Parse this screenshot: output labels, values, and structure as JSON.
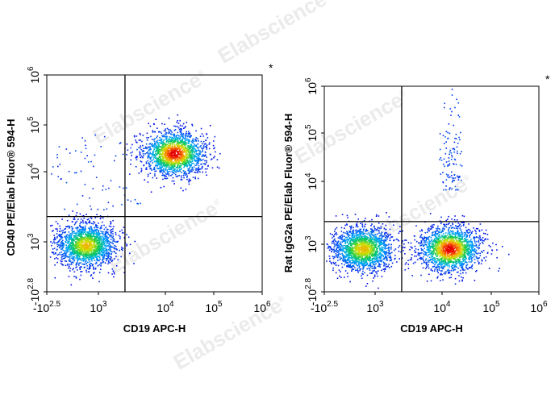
{
  "watermark": {
    "text": "Elabscience",
    "mark": "®"
  },
  "chart_data": [
    {
      "type": "scatter",
      "subtype": "flow-cytometry-density-dot-plot",
      "xlabel": "CD19 APC-H",
      "ylabel": "CD40 PE/Elab Fluor® 594-H",
      "annotation": "*",
      "xscale": "biexponential",
      "yscale": "biexponential",
      "xlim": [
        -316,
        1000000
      ],
      "ylim": [
        -631,
        1000000
      ],
      "x_ticks": [
        {
          "value": -316,
          "base": "-10",
          "exp": "2.5"
        },
        {
          "value": 1000,
          "base": "10",
          "exp": "3"
        },
        {
          "value": 10000,
          "base": "10",
          "exp": "4"
        },
        {
          "value": 100000,
          "base": "10",
          "exp": "5"
        },
        {
          "value": 1000000,
          "base": "10",
          "exp": "6"
        }
      ],
      "y_ticks": [
        {
          "value": -631,
          "base": "-10",
          "exp": "2.8"
        },
        {
          "value": 1000,
          "base": "10",
          "exp": "3"
        },
        {
          "value": 10000,
          "base": "10",
          "exp": "4"
        },
        {
          "value": 100000,
          "base": "10",
          "exp": "5"
        },
        {
          "value": 1000000,
          "base": "10",
          "exp": "6"
        }
      ],
      "quadrant_gate": {
        "x": 2500,
        "y": 2300
      },
      "populations": [
        {
          "name": "CD19- CD40-",
          "center_x": 350,
          "center_y": 750,
          "spread": "dense",
          "intensity": "high"
        },
        {
          "name": "CD19+ CD40+",
          "center_x": 15000,
          "center_y": 25000,
          "spread": "dense",
          "intensity": "peak"
        },
        {
          "name": "CD19- CD40+ scattered",
          "center_x": 300,
          "center_y": 8000,
          "spread": "sparse",
          "intensity": "low"
        }
      ]
    },
    {
      "type": "scatter",
      "subtype": "flow-cytometry-density-dot-plot",
      "xlabel": "CD19 APC-H",
      "ylabel": "Rat IgG2a PE/Elab Fluor® 594-H",
      "annotation": "*",
      "xscale": "biexponential",
      "yscale": "biexponential",
      "xlim": [
        -316,
        1000000
      ],
      "ylim": [
        -631,
        1000000
      ],
      "x_ticks": [
        {
          "value": -316,
          "base": "-10",
          "exp": "2.5"
        },
        {
          "value": 1000,
          "base": "10",
          "exp": "3"
        },
        {
          "value": 10000,
          "base": "10",
          "exp": "4"
        },
        {
          "value": 100000,
          "base": "10",
          "exp": "5"
        },
        {
          "value": 1000000,
          "base": "10",
          "exp": "6"
        }
      ],
      "y_ticks": [
        {
          "value": -631,
          "base": "-10",
          "exp": "2.8"
        },
        {
          "value": 1000,
          "base": "10",
          "exp": "3"
        },
        {
          "value": 10000,
          "base": "10",
          "exp": "4"
        },
        {
          "value": 100000,
          "base": "10",
          "exp": "5"
        },
        {
          "value": 1000000,
          "base": "10",
          "exp": "6"
        }
      ],
      "quadrant_gate": {
        "x": 2500,
        "y": 2300
      },
      "populations": [
        {
          "name": "CD19- isotype-",
          "center_x": 350,
          "center_y": 650,
          "spread": "dense",
          "intensity": "high"
        },
        {
          "name": "CD19+ isotype-",
          "center_x": 14000,
          "center_y": 650,
          "spread": "dense",
          "intensity": "peak"
        },
        {
          "name": "CD19+ vertical streak",
          "center_x": 15000,
          "center_y": 30000,
          "spread": "sparse",
          "intensity": "low"
        }
      ]
    }
  ]
}
